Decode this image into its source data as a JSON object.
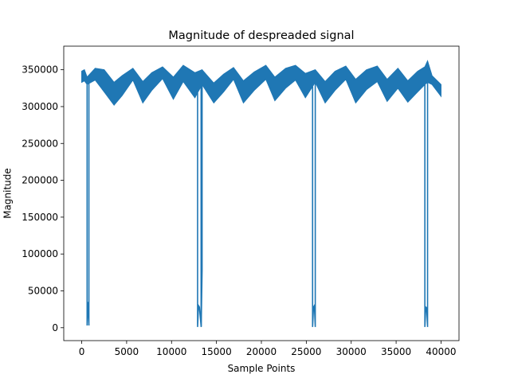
{
  "chart_data": {
    "type": "line",
    "title": "Magnitude of despreaded signal",
    "xlabel": "Sample Points",
    "ylabel": "Magnitude",
    "xlim": [
      -2000,
      42000
    ],
    "ylim": [
      -17500,
      382000
    ],
    "xticks": [
      0,
      5000,
      10000,
      15000,
      20000,
      25000,
      30000,
      35000,
      40000
    ],
    "xtick_labels": [
      "0",
      "5000",
      "10000",
      "15000",
      "20000",
      "25000",
      "30000",
      "35000",
      "40000"
    ],
    "yticks": [
      0,
      50000,
      100000,
      150000,
      200000,
      250000,
      300000,
      350000
    ],
    "ytick_labels": [
      "0",
      "50000",
      "100000",
      "150000",
      "200000",
      "250000",
      "300000",
      "350000"
    ],
    "grid": false,
    "series": [
      {
        "color": "#1f77b4",
        "x_range": [
          0,
          40000
        ],
        "envelope_upper": [
          [
            0,
            348000
          ],
          [
            300,
            350000
          ],
          [
            600,
            340000
          ],
          [
            1500,
            352000
          ],
          [
            2500,
            350000
          ],
          [
            3600,
            333000
          ],
          [
            4500,
            342000
          ],
          [
            5700,
            352000
          ],
          [
            6800,
            334000
          ],
          [
            7800,
            346000
          ],
          [
            9000,
            354000
          ],
          [
            10200,
            340000
          ],
          [
            11300,
            356000
          ],
          [
            12600,
            346000
          ],
          [
            13400,
            350000
          ],
          [
            14700,
            332000
          ],
          [
            15800,
            344000
          ],
          [
            16900,
            353000
          ],
          [
            18000,
            335000
          ],
          [
            19200,
            347000
          ],
          [
            20500,
            356000
          ],
          [
            21500,
            340000
          ],
          [
            22700,
            352000
          ],
          [
            23800,
            356000
          ],
          [
            24900,
            345000
          ],
          [
            26000,
            350000
          ],
          [
            27100,
            334000
          ],
          [
            28200,
            348000
          ],
          [
            29400,
            355000
          ],
          [
            30500,
            337000
          ],
          [
            31700,
            350000
          ],
          [
            32900,
            355000
          ],
          [
            34000,
            337000
          ],
          [
            35200,
            352000
          ],
          [
            36300,
            335000
          ],
          [
            37400,
            348000
          ],
          [
            38200,
            354000
          ],
          [
            38500,
            362000
          ],
          [
            39000,
            342000
          ],
          [
            40000,
            330000
          ]
        ],
        "envelope_lower": [
          [
            0,
            333000
          ],
          [
            300,
            335000
          ],
          [
            600,
            330000
          ],
          [
            1500,
            336000
          ],
          [
            2500,
            320000
          ],
          [
            3600,
            302000
          ],
          [
            4500,
            315000
          ],
          [
            5700,
            336000
          ],
          [
            6800,
            305000
          ],
          [
            7800,
            322000
          ],
          [
            9000,
            338000
          ],
          [
            10200,
            310000
          ],
          [
            11300,
            334000
          ],
          [
            12600,
            312000
          ],
          [
            13400,
            330000
          ],
          [
            14700,
            305000
          ],
          [
            15800,
            320000
          ],
          [
            16900,
            337000
          ],
          [
            18000,
            305000
          ],
          [
            19200,
            322000
          ],
          [
            20500,
            337000
          ],
          [
            21500,
            308000
          ],
          [
            22700,
            325000
          ],
          [
            23800,
            336000
          ],
          [
            24900,
            312000
          ],
          [
            26000,
            333000
          ],
          [
            27100,
            305000
          ],
          [
            28200,
            322000
          ],
          [
            29400,
            337000
          ],
          [
            30500,
            305000
          ],
          [
            31700,
            323000
          ],
          [
            32900,
            334000
          ],
          [
            34000,
            307000
          ],
          [
            35200,
            325000
          ],
          [
            36300,
            306000
          ],
          [
            37400,
            320000
          ],
          [
            38200,
            330000
          ],
          [
            38500,
            333000
          ],
          [
            39000,
            330000
          ],
          [
            40000,
            314000
          ]
        ],
        "dips": [
          {
            "x": [
              600,
              650,
              700,
              800
            ],
            "y": [
              3000,
              35000,
              30000,
              3000
            ]
          },
          {
            "x": [
              12900,
              13000,
              13100,
              13300
            ],
            "y": [
              1000,
              30000,
              28000,
              1000
            ]
          },
          {
            "x": [
              13300,
              13400
            ],
            "y": [
              2000,
              78000
            ]
          },
          {
            "x": [
              25700,
              25800,
              25900,
              26000
            ],
            "y": [
              1000,
              28000,
              30000,
              1000
            ]
          },
          {
            "x": [
              38200,
              38300,
              38400,
              38500
            ],
            "y": [
              1000,
              28000,
              27000,
              1000
            ]
          }
        ]
      }
    ]
  }
}
